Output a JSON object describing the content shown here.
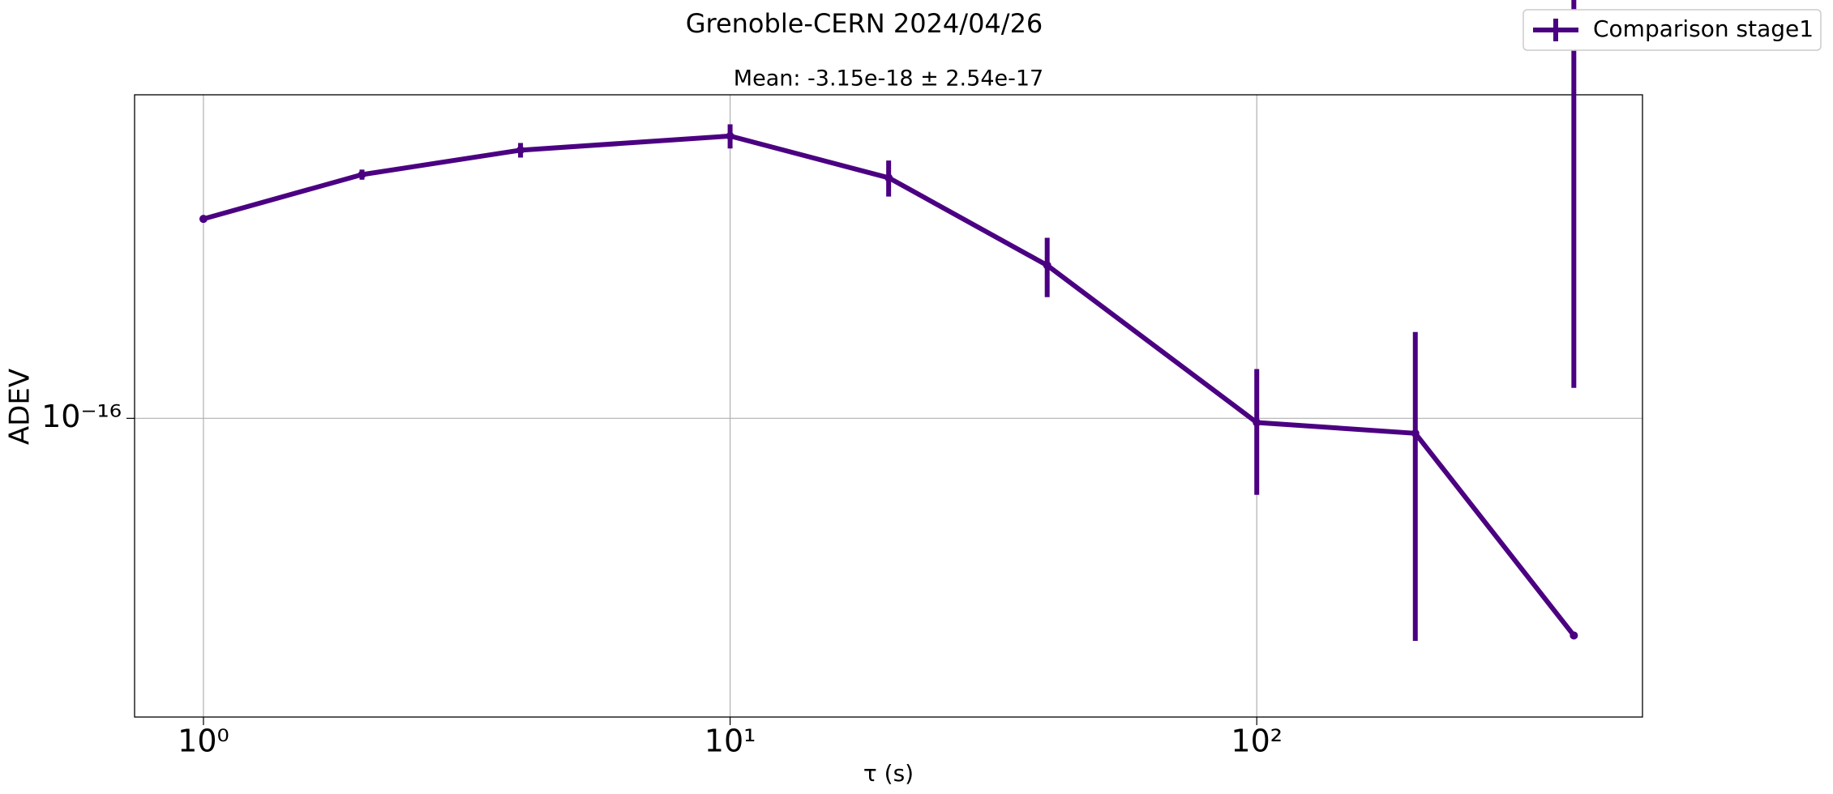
{
  "chart_data": {
    "type": "errorbar_line",
    "title": "Grenoble-CERN 2024/04/26",
    "subtitle": "Mean: -3.15e-18 ± 2.54e-17",
    "x_label": "τ (s)",
    "y_label": "ADEV",
    "x": [
      1,
      2,
      4,
      10,
      20,
      40,
      100,
      200,
      400
    ],
    "series": [
      {
        "name": "Comparison stage1",
        "color": "#4b0082",
        "values": [
          2.63e-16,
          3.26e-16,
          3.67e-16,
          3.93e-16,
          3.21e-16,
          2.1e-16,
          9.8e-17,
          9.3e-17,
          3.49e-17
        ],
        "errors": [
          2e-18,
          8e-18,
          1.3e-17,
          2.3e-17,
          2.8e-17,
          3e-17,
          2.9e-17,
          5.9e-17,
          8.1e-17
        ]
      }
    ],
    "xlim": [
      0.74,
      540
    ],
    "ylim": [
      2.35e-17,
      4.8e-16
    ],
    "xticks": [
      {
        "value": 1,
        "label": "10⁰"
      },
      {
        "value": 10,
        "label": "10¹"
      },
      {
        "value": 100,
        "label": "10²"
      }
    ],
    "yticks": [
      {
        "value": 1e-16,
        "label": "10⁻¹⁶"
      }
    ],
    "log_x": true,
    "log_y": true,
    "grid": true,
    "legend": "upper right"
  }
}
